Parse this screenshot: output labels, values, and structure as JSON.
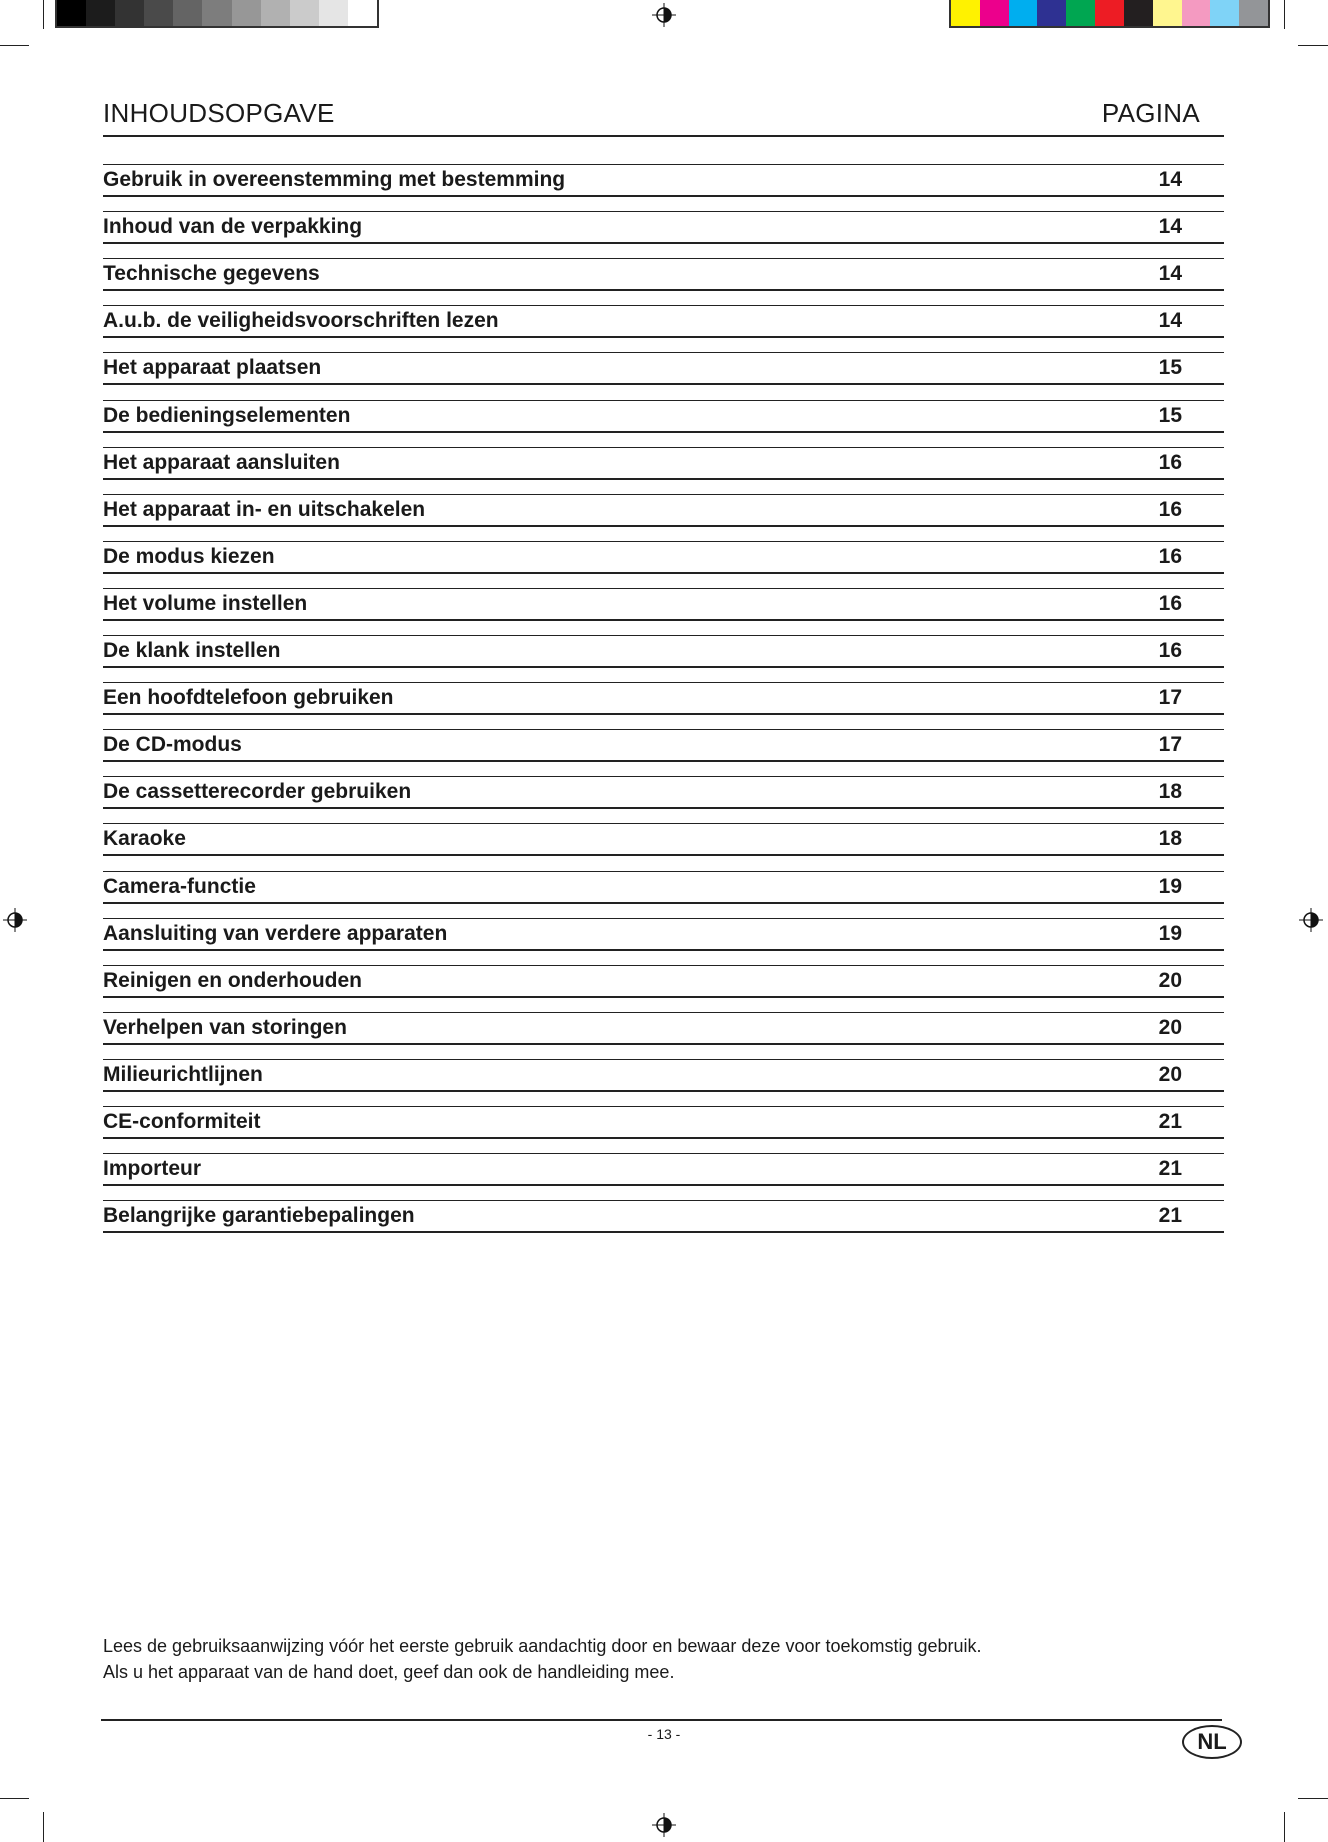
{
  "print_marks": {
    "gray_swatches": [
      "#000000",
      "#1c1c1c",
      "#333333",
      "#4a4a4a",
      "#646464",
      "#7d7d7d",
      "#979797",
      "#b1b1b1",
      "#cbcbcb",
      "#e5e5e5",
      "#ffffff"
    ],
    "color_swatches": [
      "#fff200",
      "#ec008c",
      "#00aeef",
      "#2e3192",
      "#00a651",
      "#ed1c24",
      "#231f20",
      "#fff68f",
      "#f49ac1",
      "#7fd3f7",
      "#939598"
    ],
    "registration_icon": "crosshair-registration-icon"
  },
  "header": {
    "title": "INHOUDSOPGAVE",
    "page_label": "PAGINA"
  },
  "toc": [
    {
      "title": "Gebruik in overeenstemming met bestemming",
      "page": "14"
    },
    {
      "title": "Inhoud van de verpakking",
      "page": "14"
    },
    {
      "title": "Technische gegevens",
      "page": "14"
    },
    {
      "title": "A.u.b. de veiligheidsvoorschriften lezen",
      "page": "14"
    },
    {
      "title": "Het apparaat plaatsen",
      "page": "15"
    },
    {
      "title": "De bedieningselementen",
      "page": "15"
    },
    {
      "title": "Het apparaat aansluiten",
      "page": "16"
    },
    {
      "title": "Het apparaat in- en uitschakelen",
      "page": "16"
    },
    {
      "title": "De modus kiezen",
      "page": "16"
    },
    {
      "title": "Het volume instellen",
      "page": "16"
    },
    {
      "title": "De klank instellen",
      "page": "16"
    },
    {
      "title": "Een hoofdtelefoon gebruiken",
      "page": "17"
    },
    {
      "title": "De CD-modus",
      "page": "17"
    },
    {
      "title": "De cassetterecorder gebruiken",
      "page": "18"
    },
    {
      "title": "Karaoke",
      "page": "18"
    },
    {
      "title": "Camera-functie",
      "page": "19"
    },
    {
      "title": "Aansluiting van verdere apparaten",
      "page": "19"
    },
    {
      "title": "Reinigen en onderhouden",
      "page": "20"
    },
    {
      "title": "Verhelpen van storingen",
      "page": "20"
    },
    {
      "title": "Milieurichtlijnen",
      "page": "20"
    },
    {
      "title": "CE-conformiteit",
      "page": "21"
    },
    {
      "title": "Importeur",
      "page": "21"
    },
    {
      "title": "Belangrijke garantiebepalingen",
      "page": "21"
    }
  ],
  "footer": {
    "note_line1": "Lees de gebruiksaanwijzing vóór het eerste gebruik aandachtig door en bewaar deze voor toekomstig gebruik.",
    "note_line2": "Als u het apparaat van de hand doet, geef dan ook de handleiding mee.",
    "page_number": "- 13 -",
    "language_badge": "NL"
  }
}
